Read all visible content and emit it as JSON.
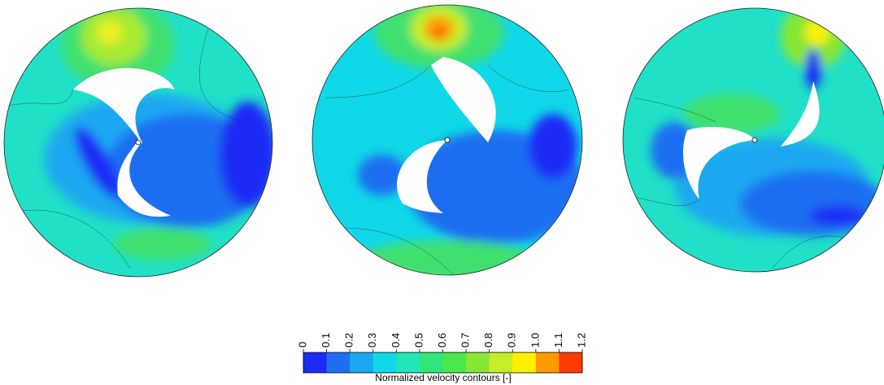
{
  "colorbar": {
    "label": "Normalized velocity contours [-]",
    "ticks": [
      "0",
      "0.1",
      "0.2",
      "0.3",
      "0.4",
      "0.5",
      "0.6",
      "0.7",
      "0.8",
      "0.9",
      "1.0",
      "1.1",
      "1.2"
    ],
    "colors": [
      "#1a2cf5",
      "#1e6ef0",
      "#1aa8f0",
      "#10d8e8",
      "#20e6b8",
      "#30e67c",
      "#4ee64e",
      "#88e634",
      "#c6ee28",
      "#fff000",
      "#ff9a00",
      "#ff3a00"
    ]
  }
}
